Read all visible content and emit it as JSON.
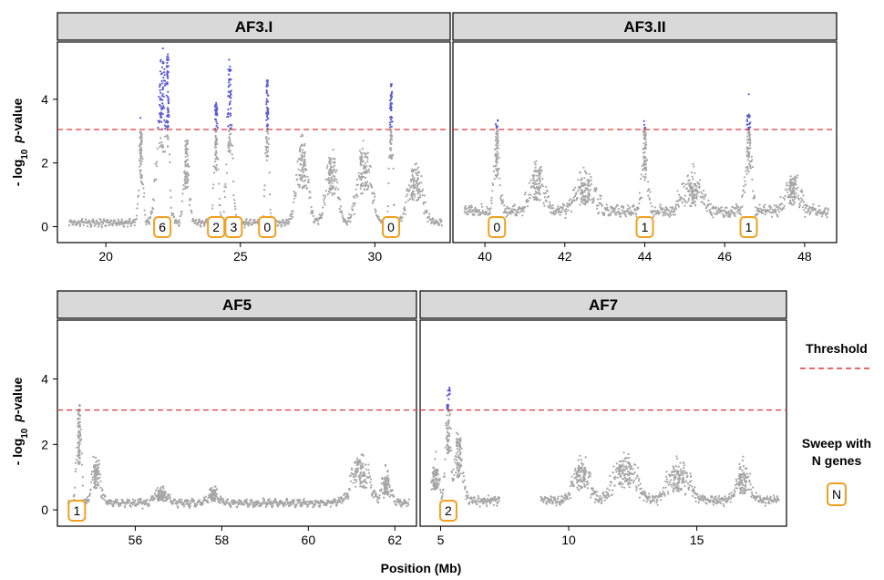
{
  "chart_data": [
    {
      "type": "scatter",
      "title": "AF3.I",
      "xlabel": "",
      "ylabel": "- log10 p-value",
      "xlim": [
        18.2,
        32.8
      ],
      "ylim": [
        -0.5,
        5.8
      ],
      "xticks": [
        20,
        25,
        30
      ],
      "yticks": [
        0,
        2,
        4
      ],
      "threshold": 3.05,
      "profile": {
        "baseline": 0.05,
        "peaks": [
          {
            "x": 21.3,
            "h": 3.0,
            "w": 0.15
          },
          {
            "x": 22.1,
            "h": 5.2,
            "w": 0.35
          },
          {
            "x": 22.3,
            "h": 5.5,
            "w": 0.12
          },
          {
            "x": 23.0,
            "h": 2.6,
            "w": 0.2
          },
          {
            "x": 24.1,
            "h": 3.9,
            "w": 0.15
          },
          {
            "x": 24.6,
            "h": 5.0,
            "w": 0.2
          },
          {
            "x": 26.0,
            "h": 4.6,
            "w": 0.12
          },
          {
            "x": 27.3,
            "h": 2.6,
            "w": 0.4
          },
          {
            "x": 28.4,
            "h": 2.2,
            "w": 0.4
          },
          {
            "x": 29.6,
            "h": 2.3,
            "w": 0.5
          },
          {
            "x": 30.6,
            "h": 4.6,
            "w": 0.12
          },
          {
            "x": 31.5,
            "h": 1.8,
            "w": 0.5
          }
        ]
      },
      "sweeps": [
        {
          "x": 22.1,
          "n": "6"
        },
        {
          "x": 24.1,
          "n": "2"
        },
        {
          "x": 24.75,
          "n": "3"
        },
        {
          "x": 26.0,
          "n": "0"
        },
        {
          "x": 30.6,
          "n": "0"
        }
      ]
    },
    {
      "type": "scatter",
      "title": "AF3.II",
      "xlabel": "",
      "ylabel": "",
      "xlim": [
        39.2,
        48.8
      ],
      "ylim": [
        -0.5,
        5.8
      ],
      "xticks": [
        40,
        42,
        44,
        46,
        48
      ],
      "yticks": [
        0,
        2,
        4
      ],
      "threshold": 3.05,
      "profile": {
        "baseline": 0.5,
        "peaks": [
          {
            "x": 40.3,
            "h": 3.4,
            "w": 0.12
          },
          {
            "x": 41.3,
            "h": 1.8,
            "w": 0.3
          },
          {
            "x": 42.5,
            "h": 1.5,
            "w": 0.4
          },
          {
            "x": 44.0,
            "h": 3.2,
            "w": 0.12
          },
          {
            "x": 45.2,
            "h": 1.4,
            "w": 0.4
          },
          {
            "x": 46.6,
            "h": 3.55,
            "w": 0.14
          },
          {
            "x": 47.7,
            "h": 1.5,
            "w": 0.3
          }
        ]
      },
      "sweeps": [
        {
          "x": 40.3,
          "n": "0"
        },
        {
          "x": 44.0,
          "n": "1"
        },
        {
          "x": 46.6,
          "n": "1"
        }
      ]
    },
    {
      "type": "scatter",
      "title": "AF5",
      "xlabel": "Position (Mb)",
      "ylabel": "- log10 p-value",
      "xlim": [
        54.2,
        62.5
      ],
      "ylim": [
        -0.5,
        5.8
      ],
      "xticks": [
        56,
        58,
        60,
        62
      ],
      "yticks": [
        0,
        2,
        4
      ],
      "threshold": 3.05,
      "profile": {
        "baseline": 0.15,
        "peaks": [
          {
            "x": 54.7,
            "h": 3.1,
            "w": 0.1
          },
          {
            "x": 55.1,
            "h": 1.4,
            "w": 0.2
          },
          {
            "x": 56.6,
            "h": 0.6,
            "w": 0.3
          },
          {
            "x": 57.8,
            "h": 0.6,
            "w": 0.2
          },
          {
            "x": 61.2,
            "h": 1.5,
            "w": 0.4
          },
          {
            "x": 61.8,
            "h": 1.0,
            "w": 0.2
          }
        ]
      },
      "sweeps": [
        {
          "x": 54.65,
          "n": "1"
        }
      ]
    },
    {
      "type": "scatter",
      "title": "AF7",
      "xlabel": "Position (Mb)",
      "ylabel": "",
      "xlim": [
        4.2,
        18.5
      ],
      "ylim": [
        -0.5,
        5.8
      ],
      "xticks": [
        5,
        10,
        15
      ],
      "yticks": [
        0,
        2,
        4
      ],
      "threshold": 3.05,
      "gap": [
        7.3,
        8.9
      ],
      "profile": {
        "baseline": 0.25,
        "peaks": [
          {
            "x": 4.8,
            "h": 1.3,
            "w": 0.3
          },
          {
            "x": 5.3,
            "h": 3.75,
            "w": 0.2
          },
          {
            "x": 5.7,
            "h": 2.2,
            "w": 0.3
          },
          {
            "x": 10.5,
            "h": 1.3,
            "w": 0.6
          },
          {
            "x": 12.2,
            "h": 1.5,
            "w": 0.8
          },
          {
            "x": 14.3,
            "h": 1.2,
            "w": 0.8
          },
          {
            "x": 16.8,
            "h": 1.1,
            "w": 0.5
          }
        ]
      },
      "sweeps": [
        {
          "x": 5.3,
          "n": "2"
        }
      ]
    }
  ],
  "legend": {
    "threshold_label": "Threshold",
    "sweep_label_line1": "Sweep with",
    "sweep_label_line2": "N genes",
    "sweep_symbol": "N"
  },
  "ylabel_prefix": "- log",
  "ylabel_sub": "10",
  "ylabel_italic": "p",
  "ylabel_suffix": "-value",
  "xlabel": "Position (Mb)",
  "colors": {
    "points": "#a6a6a6",
    "above_threshold": "#5a5ad6",
    "threshold": "#e0393b",
    "sweep_box": "#f0a020",
    "strip_fill": "#d9d9d9"
  }
}
